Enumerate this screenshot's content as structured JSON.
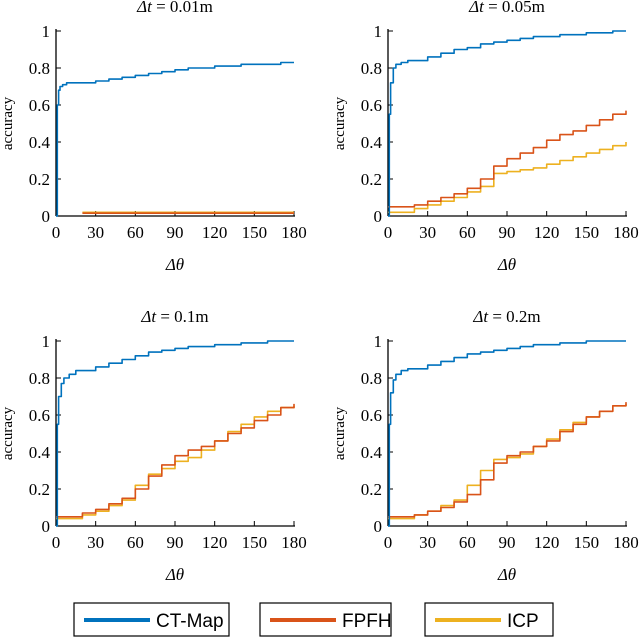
{
  "colors": {
    "ctmap": "#0072BD",
    "fpfh": "#D95319",
    "icp": "#EDB120",
    "axis": "#000000"
  },
  "legend": [
    {
      "key": "ctmap",
      "label": "CT-Map"
    },
    {
      "key": "fpfh",
      "label": "FPFH"
    },
    {
      "key": "icp",
      "label": "ICP"
    }
  ],
  "chart_data": [
    {
      "type": "line",
      "title_prefix": "Δt",
      "title_value": " = 0.01m",
      "xlabel": "Δθ",
      "ylabel": "accuracy",
      "xlim": [
        0,
        180
      ],
      "ylim": [
        0,
        1
      ],
      "xticks": [
        0,
        30,
        60,
        90,
        120,
        150,
        180
      ],
      "yticks": [
        0,
        0.2,
        0.4,
        0.6,
        0.8,
        1
      ],
      "ytick_labels": [
        "0",
        "0.2",
        "0.4",
        "0.6",
        "0.8",
        "1"
      ],
      "series": [
        {
          "name": "CT-Map",
          "key": "ctmap",
          "x": [
            0,
            1,
            2,
            3,
            5,
            8,
            15,
            20,
            30,
            40,
            50,
            60,
            70,
            80,
            90,
            100,
            110,
            120,
            130,
            140,
            150,
            160,
            170,
            180
          ],
          "y": [
            0,
            0.6,
            0.68,
            0.7,
            0.71,
            0.72,
            0.72,
            0.72,
            0.73,
            0.74,
            0.75,
            0.76,
            0.77,
            0.78,
            0.79,
            0.8,
            0.8,
            0.81,
            0.81,
            0.82,
            0.82,
            0.82,
            0.83,
            0.83
          ]
        },
        {
          "name": "FPFH",
          "key": "fpfh",
          "x": [
            20,
            60,
            120,
            180
          ],
          "y": [
            0.015,
            0.015,
            0.015,
            0.015
          ]
        },
        {
          "name": "ICP",
          "key": "icp",
          "x": [
            20,
            60,
            120,
            180
          ],
          "y": [
            0.02,
            0.02,
            0.02,
            0.02
          ]
        }
      ]
    },
    {
      "type": "line",
      "title_prefix": "Δt",
      "title_value": " = 0.05m",
      "xlabel": "Δθ",
      "ylabel": "accuracy",
      "xlim": [
        0,
        180
      ],
      "ylim": [
        0,
        1
      ],
      "xticks": [
        0,
        30,
        60,
        90,
        120,
        150,
        180
      ],
      "yticks": [
        0,
        0.2,
        0.4,
        0.6,
        0.8,
        1
      ],
      "ytick_labels": [
        "0",
        "0.2",
        "0.4",
        "0.6",
        "0.8",
        "1"
      ],
      "series": [
        {
          "name": "CT-Map",
          "key": "ctmap",
          "x": [
            0,
            1,
            2,
            4,
            6,
            10,
            15,
            20,
            30,
            40,
            50,
            60,
            70,
            80,
            90,
            100,
            110,
            120,
            130,
            140,
            150,
            160,
            170,
            180
          ],
          "y": [
            0,
            0.55,
            0.72,
            0.8,
            0.82,
            0.83,
            0.84,
            0.84,
            0.86,
            0.88,
            0.9,
            0.91,
            0.93,
            0.94,
            0.95,
            0.96,
            0.97,
            0.97,
            0.98,
            0.98,
            0.99,
            0.99,
            1.0,
            1.0
          ]
        },
        {
          "name": "FPFH",
          "key": "fpfh",
          "x": [
            0,
            10,
            20,
            30,
            40,
            50,
            60,
            70,
            80,
            90,
            100,
            110,
            120,
            130,
            140,
            150,
            160,
            170,
            180
          ],
          "y": [
            0.05,
            0.05,
            0.06,
            0.08,
            0.1,
            0.12,
            0.15,
            0.2,
            0.27,
            0.31,
            0.34,
            0.37,
            0.41,
            0.44,
            0.46,
            0.49,
            0.52,
            0.55,
            0.57
          ]
        },
        {
          "name": "ICP",
          "key": "icp",
          "x": [
            0,
            10,
            20,
            30,
            40,
            50,
            60,
            70,
            80,
            90,
            100,
            110,
            120,
            130,
            140,
            150,
            160,
            170,
            180
          ],
          "y": [
            0.02,
            0.02,
            0.04,
            0.06,
            0.08,
            0.1,
            0.13,
            0.16,
            0.23,
            0.24,
            0.25,
            0.26,
            0.28,
            0.3,
            0.32,
            0.34,
            0.36,
            0.38,
            0.4
          ]
        }
      ]
    },
    {
      "type": "line",
      "title_prefix": "Δt",
      "title_value": " = 0.1m",
      "xlabel": "Δθ",
      "ylabel": "accuracy",
      "xlim": [
        0,
        180
      ],
      "ylim": [
        0,
        1
      ],
      "xticks": [
        0,
        30,
        60,
        90,
        120,
        150,
        180
      ],
      "yticks": [
        0,
        0.2,
        0.4,
        0.6,
        0.8,
        1
      ],
      "ytick_labels": [
        "0",
        "0.2",
        "0.4",
        "0.6",
        "0.8",
        "1"
      ],
      "series": [
        {
          "name": "CT-Map",
          "key": "ctmap",
          "x": [
            0,
            1,
            2,
            4,
            6,
            10,
            15,
            20,
            30,
            40,
            50,
            60,
            70,
            80,
            90,
            100,
            110,
            120,
            130,
            140,
            150,
            160,
            170,
            180
          ],
          "y": [
            0,
            0.55,
            0.7,
            0.77,
            0.8,
            0.82,
            0.84,
            0.84,
            0.86,
            0.88,
            0.9,
            0.92,
            0.94,
            0.95,
            0.96,
            0.97,
            0.97,
            0.98,
            0.98,
            0.99,
            0.99,
            1.0,
            1.0,
            1.0
          ]
        },
        {
          "name": "FPFH",
          "key": "fpfh",
          "x": [
            0,
            10,
            20,
            30,
            40,
            50,
            60,
            70,
            80,
            90,
            100,
            110,
            120,
            130,
            140,
            150,
            160,
            170,
            180
          ],
          "y": [
            0.05,
            0.05,
            0.07,
            0.09,
            0.12,
            0.15,
            0.2,
            0.27,
            0.33,
            0.38,
            0.41,
            0.43,
            0.46,
            0.5,
            0.53,
            0.57,
            0.6,
            0.64,
            0.66
          ]
        },
        {
          "name": "ICP",
          "key": "icp",
          "x": [
            0,
            10,
            20,
            30,
            40,
            50,
            60,
            70,
            80,
            90,
            100,
            110,
            120,
            130,
            140,
            150,
            160,
            170,
            180
          ],
          "y": [
            0.04,
            0.04,
            0.06,
            0.08,
            0.11,
            0.14,
            0.22,
            0.28,
            0.31,
            0.35,
            0.37,
            0.41,
            0.46,
            0.51,
            0.55,
            0.59,
            0.62,
            0.64,
            0.65
          ]
        }
      ]
    },
    {
      "type": "line",
      "title_prefix": "Δt",
      "title_value": " = 0.2m",
      "xlabel": "Δθ",
      "ylabel": "accuracy",
      "xlim": [
        0,
        180
      ],
      "ylim": [
        0,
        1
      ],
      "xticks": [
        0,
        30,
        60,
        90,
        120,
        150,
        180
      ],
      "yticks": [
        0,
        0.2,
        0.4,
        0.6,
        0.8,
        1
      ],
      "ytick_labels": [
        "0",
        "0.2",
        "0.4",
        "0.6",
        "0.8",
        "1"
      ],
      "series": [
        {
          "name": "CT-Map",
          "key": "ctmap",
          "x": [
            0,
            1,
            2,
            4,
            6,
            10,
            15,
            20,
            30,
            40,
            50,
            60,
            70,
            80,
            90,
            100,
            110,
            120,
            130,
            140,
            150,
            160,
            170,
            180
          ],
          "y": [
            0,
            0.55,
            0.72,
            0.79,
            0.82,
            0.84,
            0.85,
            0.85,
            0.87,
            0.89,
            0.91,
            0.93,
            0.94,
            0.95,
            0.96,
            0.97,
            0.98,
            0.98,
            0.99,
            0.99,
            1.0,
            1.0,
            1.0,
            1.0
          ]
        },
        {
          "name": "FPFH",
          "key": "fpfh",
          "x": [
            0,
            10,
            20,
            30,
            40,
            50,
            60,
            70,
            80,
            90,
            100,
            110,
            120,
            130,
            140,
            150,
            160,
            170,
            180
          ],
          "y": [
            0.05,
            0.05,
            0.06,
            0.08,
            0.1,
            0.13,
            0.17,
            0.25,
            0.34,
            0.38,
            0.4,
            0.43,
            0.46,
            0.51,
            0.55,
            0.59,
            0.62,
            0.65,
            0.67
          ]
        },
        {
          "name": "ICP",
          "key": "icp",
          "x": [
            0,
            10,
            20,
            30,
            40,
            50,
            60,
            70,
            80,
            90,
            100,
            110,
            120,
            130,
            140,
            150,
            160,
            170,
            180
          ],
          "y": [
            0.04,
            0.04,
            0.06,
            0.08,
            0.11,
            0.14,
            0.22,
            0.3,
            0.36,
            0.37,
            0.39,
            0.43,
            0.47,
            0.52,
            0.56,
            0.59,
            0.62,
            0.65,
            0.66
          ]
        }
      ]
    }
  ]
}
